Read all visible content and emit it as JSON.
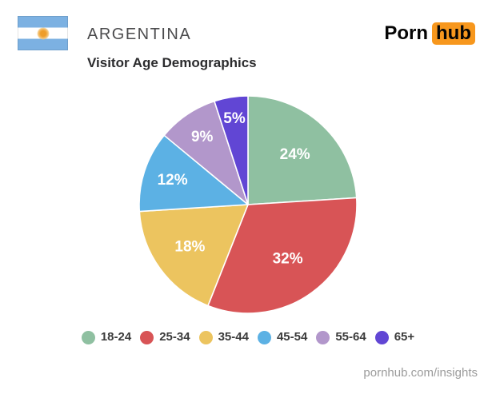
{
  "header": {
    "country": "ARGENTINA",
    "brand": {
      "part1": "Porn",
      "part2": "hub"
    }
  },
  "subtitle": "Visitor Age Demographics",
  "chart_data": {
    "type": "pie",
    "title": "Visitor Age Demographics",
    "categories": [
      "18-24",
      "25-34",
      "35-44",
      "45-54",
      "55-64",
      "65+"
    ],
    "values": [
      24,
      32,
      18,
      12,
      9,
      5
    ],
    "unit": "%",
    "slice_labels": [
      "24%",
      "32%",
      "18%",
      "12%",
      "9%",
      "5%"
    ],
    "colors": [
      "#8FC0A1",
      "#D85456",
      "#ECC45F",
      "#5CB1E4",
      "#B297CB",
      "#6146D4"
    ],
    "start_angle_deg": -90,
    "direction": "clockwise",
    "legend_position": "bottom",
    "label_color": "#ffffff"
  },
  "flag": {
    "country": "Argentina",
    "stripe_color": "#7CB1E2",
    "sun_color": "#EE9D2A"
  },
  "brand_colors": {
    "logo_orange": "#F7971D"
  },
  "footer": {
    "url": "pornhub.com/insights"
  }
}
